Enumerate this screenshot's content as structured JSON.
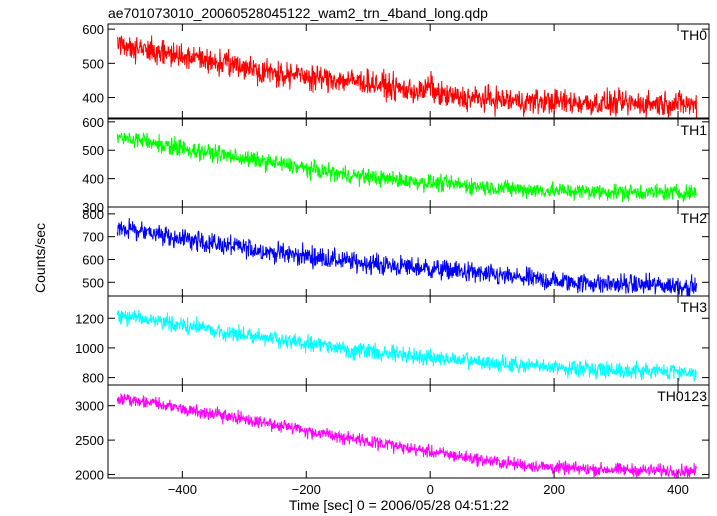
{
  "chart_data": {
    "type": "line",
    "title": "ae701073010_20060528045122_wam2_trn_4band_long.qdp",
    "xlabel": "Time [sec] 0 = 2006/05/28 04:51:22",
    "ylabel": "Counts/sec",
    "xlim": [
      -520,
      450
    ],
    "x_ticks": [
      -400,
      -200,
      0,
      200,
      400
    ],
    "panels": [
      {
        "name": "TH0",
        "color": "#ff0000",
        "ylim": [
          340,
          615
        ],
        "y_ticks": [
          400,
          500,
          600
        ],
        "x": [
          -505,
          -450,
          -400,
          -350,
          -300,
          -250,
          -200,
          -150,
          -100,
          -50,
          -10,
          0,
          10,
          50,
          100,
          150,
          200,
          250,
          300,
          350,
          400,
          430
        ],
        "values": [
          560,
          535,
          520,
          505,
          490,
          470,
          462,
          452,
          445,
          425,
          415,
          440,
          410,
          398,
          395,
          388,
          388,
          384,
          382,
          382,
          383,
          378
        ],
        "noise": 28
      },
      {
        "name": "TH1",
        "color": "#00ff00",
        "ylim": [
          300,
          610
        ],
        "y_ticks": [
          300,
          400,
          500,
          600
        ],
        "x": [
          -505,
          -450,
          -400,
          -350,
          -300,
          -250,
          -200,
          -150,
          -100,
          -50,
          0,
          50,
          100,
          150,
          200,
          250,
          300,
          350,
          400,
          430
        ],
        "values": [
          545,
          530,
          505,
          490,
          470,
          455,
          435,
          418,
          405,
          395,
          385,
          378,
          368,
          362,
          357,
          355,
          353,
          352,
          350,
          352
        ],
        "noise": 22
      },
      {
        "name": "TH2",
        "color": "#0000ff",
        "ylim": [
          440,
          830
        ],
        "y_ticks": [
          500,
          600,
          700,
          800
        ],
        "x": [
          -505,
          -450,
          -400,
          -350,
          -300,
          -250,
          -200,
          -150,
          -100,
          -50,
          0,
          50,
          100,
          150,
          200,
          250,
          300,
          350,
          400,
          430
        ],
        "values": [
          745,
          715,
          690,
          670,
          650,
          630,
          615,
          598,
          582,
          570,
          560,
          548,
          530,
          518,
          505,
          498,
          492,
          488,
          485,
          480
        ],
        "noise": 34
      },
      {
        "name": "TH3",
        "color": "#00ffff",
        "ylim": [
          750,
          1350
        ],
        "y_ticks": [
          800,
          1000,
          1200
        ],
        "x": [
          -505,
          -450,
          -400,
          -350,
          -300,
          -250,
          -200,
          -150,
          -100,
          -50,
          0,
          50,
          100,
          150,
          200,
          250,
          300,
          350,
          400,
          430
        ],
        "values": [
          1220,
          1185,
          1150,
          1120,
          1090,
          1060,
          1030,
          1000,
          975,
          955,
          935,
          915,
          895,
          880,
          870,
          860,
          852,
          845,
          840,
          838
        ],
        "noise": 42
      },
      {
        "name": "TH0123",
        "color": "#ff00ff",
        "ylim": [
          1950,
          3300
        ],
        "y_ticks": [
          2000,
          2500,
          3000
        ],
        "x": [
          -505,
          -450,
          -400,
          -350,
          -300,
          -250,
          -200,
          -150,
          -100,
          -50,
          0,
          50,
          100,
          150,
          200,
          250,
          300,
          350,
          400,
          430
        ],
        "values": [
          3100,
          3040,
          2960,
          2880,
          2800,
          2720,
          2640,
          2560,
          2480,
          2400,
          2330,
          2260,
          2190,
          2140,
          2100,
          2080,
          2070,
          2060,
          2055,
          2050
        ],
        "noise": 70
      }
    ]
  }
}
